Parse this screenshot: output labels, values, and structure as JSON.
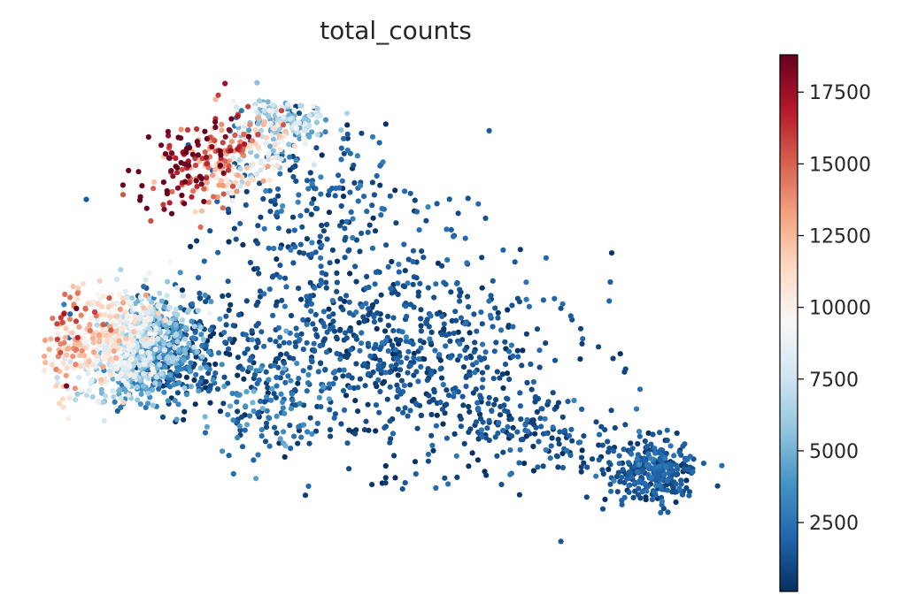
{
  "chart_data": {
    "type": "scatter",
    "title": "total_counts",
    "xlabel": "",
    "ylabel": "",
    "axes_visible": false,
    "grid": false,
    "colormap": "RdBu_r",
    "colormap_stops": [
      "#053061",
      "#2166ac",
      "#4393c3",
      "#92c5de",
      "#d1e5f0",
      "#f7f7f7",
      "#fddbc7",
      "#f4a582",
      "#d6604d",
      "#b2182b",
      "#67001f"
    ],
    "colorbar": {
      "min": 100,
      "max": 18800,
      "ticks": [
        2500,
        5000,
        7500,
        10000,
        12500,
        15000,
        17500
      ],
      "tick_labels": [
        "2500",
        "5000",
        "7500",
        "10000",
        "12500",
        "15000",
        "17500"
      ],
      "position": "right"
    },
    "xlim": [
      0,
      100
    ],
    "ylim": [
      0,
      100
    ],
    "point_count_approx": 3000,
    "clusters": [
      {
        "name": "",
        "cx": 25.7,
        "cy": 81.7,
        "sx": 4.0,
        "sy": 6.5,
        "rot": -52,
        "n": 330,
        "v": 13500,
        "vsd": 3000,
        "grad": 2.0
      },
      {
        "name": "",
        "cx": 34.0,
        "cy": 89.5,
        "sx": 3.0,
        "sy": 2.2,
        "rot": -10,
        "n": 140,
        "v": 5800,
        "vsd": 1800,
        "grad": 0
      },
      {
        "name": "",
        "cx": 13.5,
        "cy": 45.5,
        "sx": 5.8,
        "sy": 5.2,
        "rot": 10,
        "n": 1150,
        "v": 6500,
        "vsd": 2200,
        "grad": 1.6
      },
      {
        "name": "",
        "cx": 50.0,
        "cy": 44.0,
        "sx": 13.5,
        "sy": 9.5,
        "rot": -15,
        "n": 750,
        "v": 1200,
        "vsd": 700,
        "grad": 0
      },
      {
        "name": "",
        "cx": 41.0,
        "cy": 71.0,
        "sx": 9.0,
        "sy": 8.0,
        "rot": -25,
        "n": 220,
        "v": 1300,
        "vsd": 900,
        "grad": 0
      },
      {
        "name": "",
        "cx": 86.5,
        "cy": 21.0,
        "sx": 3.0,
        "sy": 3.2,
        "rot": 0,
        "n": 280,
        "v": 1400,
        "vsd": 700,
        "grad": 0
      },
      {
        "name": "",
        "cx": 70.5,
        "cy": 28.0,
        "sx": 7.0,
        "sy": 3.8,
        "rot": -20,
        "n": 130,
        "v": 1200,
        "vsd": 700,
        "grad": 0
      },
      {
        "name": "",
        "cx": 31.0,
        "cy": 35.0,
        "sx": 5.0,
        "sy": 5.5,
        "rot": 0,
        "n": 150,
        "v": 2400,
        "vsd": 1500,
        "grad": 0
      }
    ]
  }
}
